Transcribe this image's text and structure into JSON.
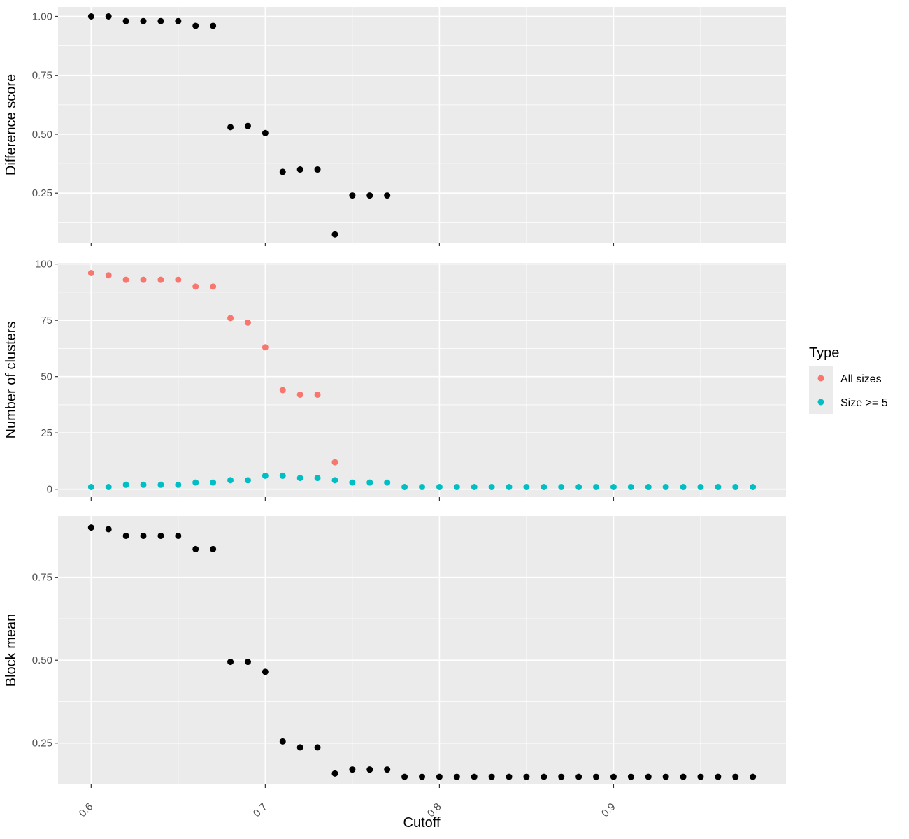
{
  "chart_data": [
    {
      "type": "scatter",
      "ylabel": "Difference score",
      "xlabel": "",
      "xlim": [
        0.581,
        0.999
      ],
      "ylim": [
        0.04,
        1.04
      ],
      "y_ticks": [
        0.25,
        0.5,
        0.75,
        1.0
      ],
      "y_tick_labels": [
        "0.25",
        "0.50",
        "0.75",
        "1.00"
      ],
      "series": [
        {
          "color": "#000000",
          "x": [
            0.6,
            0.61,
            0.62,
            0.63,
            0.64,
            0.65,
            0.66,
            0.67,
            0.68,
            0.69,
            0.7,
            0.71,
            0.72,
            0.73,
            0.74,
            0.75,
            0.76,
            0.77
          ],
          "y": [
            1.0,
            1.0,
            0.98,
            0.98,
            0.98,
            0.98,
            0.96,
            0.96,
            0.53,
            0.535,
            0.505,
            0.34,
            0.35,
            0.35,
            0.075,
            0.24,
            0.24,
            0.24
          ]
        }
      ]
    },
    {
      "type": "scatter",
      "ylabel": "Number of clusters",
      "xlabel": "",
      "xlim": [
        0.581,
        0.999
      ],
      "ylim": [
        -3.5,
        100.5
      ],
      "y_ticks": [
        0,
        25,
        50,
        75,
        100
      ],
      "y_tick_labels": [
        "0",
        "25",
        "50",
        "75",
        "100"
      ],
      "series": [
        {
          "name": "All sizes",
          "color": "#F8766D",
          "x": [
            0.6,
            0.61,
            0.62,
            0.63,
            0.64,
            0.65,
            0.66,
            0.67,
            0.68,
            0.69,
            0.7,
            0.71,
            0.72,
            0.73,
            0.74
          ],
          "y": [
            96,
            95,
            93,
            93,
            93,
            93,
            90,
            90,
            76,
            74,
            63,
            44,
            42,
            42,
            12
          ]
        },
        {
          "name": "Size >= 5",
          "color": "#00BFC4",
          "x": [
            0.6,
            0.61,
            0.62,
            0.63,
            0.64,
            0.65,
            0.66,
            0.67,
            0.68,
            0.69,
            0.7,
            0.71,
            0.72,
            0.73,
            0.74,
            0.75,
            0.76,
            0.77,
            0.78,
            0.79,
            0.8,
            0.81,
            0.82,
            0.83,
            0.84,
            0.85,
            0.86,
            0.87,
            0.88,
            0.89,
            0.9,
            0.91,
            0.92,
            0.93,
            0.94,
            0.95,
            0.96,
            0.97,
            0.98
          ],
          "y": [
            1,
            1,
            2,
            2,
            2,
            2,
            3,
            3,
            4,
            4,
            6,
            6,
            5,
            5,
            4,
            3,
            3,
            3,
            1,
            1,
            1,
            1,
            1,
            1,
            1,
            1,
            1,
            1,
            1,
            1,
            1,
            1,
            1,
            1,
            1,
            1,
            1,
            1,
            1
          ]
        }
      ]
    },
    {
      "type": "scatter",
      "ylabel": "Block mean",
      "xlabel": "Cutoff",
      "xlim": [
        0.581,
        0.999
      ],
      "ylim": [
        0.125,
        0.935
      ],
      "y_ticks": [
        0.25,
        0.5,
        0.75
      ],
      "y_tick_labels": [
        "0.25",
        "0.50",
        "0.75"
      ],
      "series": [
        {
          "color": "#000000",
          "x": [
            0.6,
            0.61,
            0.62,
            0.63,
            0.64,
            0.65,
            0.66,
            0.67,
            0.68,
            0.69,
            0.7,
            0.71,
            0.72,
            0.73,
            0.74,
            0.75,
            0.76,
            0.77,
            0.78,
            0.79,
            0.8,
            0.81,
            0.82,
            0.83,
            0.84,
            0.85,
            0.86,
            0.87,
            0.88,
            0.89,
            0.9,
            0.91,
            0.92,
            0.93,
            0.94,
            0.95,
            0.96,
            0.97,
            0.98
          ],
          "y": [
            0.9,
            0.895,
            0.875,
            0.875,
            0.875,
            0.875,
            0.835,
            0.835,
            0.495,
            0.495,
            0.465,
            0.255,
            0.237,
            0.237,
            0.158,
            0.17,
            0.17,
            0.17,
            0.148,
            0.148,
            0.148,
            0.148,
            0.148,
            0.148,
            0.148,
            0.148,
            0.148,
            0.148,
            0.148,
            0.148,
            0.148,
            0.148,
            0.148,
            0.148,
            0.148,
            0.148,
            0.148,
            0.148,
            0.148
          ]
        }
      ]
    }
  ],
  "x_axis": {
    "title": "Cutoff",
    "ticks": [
      0.6,
      0.7,
      0.8,
      0.9
    ],
    "tick_labels": [
      "0.6",
      "0.7",
      "0.8",
      "0.9"
    ],
    "minor_ticks": [
      0.65,
      0.75,
      0.85,
      0.95
    ]
  },
  "legend": {
    "title": "Type",
    "items": [
      {
        "label": "All sizes",
        "color": "#F8766D"
      },
      {
        "label": "Size >= 5",
        "color": "#00BFC4"
      }
    ],
    "position": "right"
  },
  "style": {
    "panel_background": "#EBEBEB",
    "grid_color": "#FFFFFF"
  }
}
